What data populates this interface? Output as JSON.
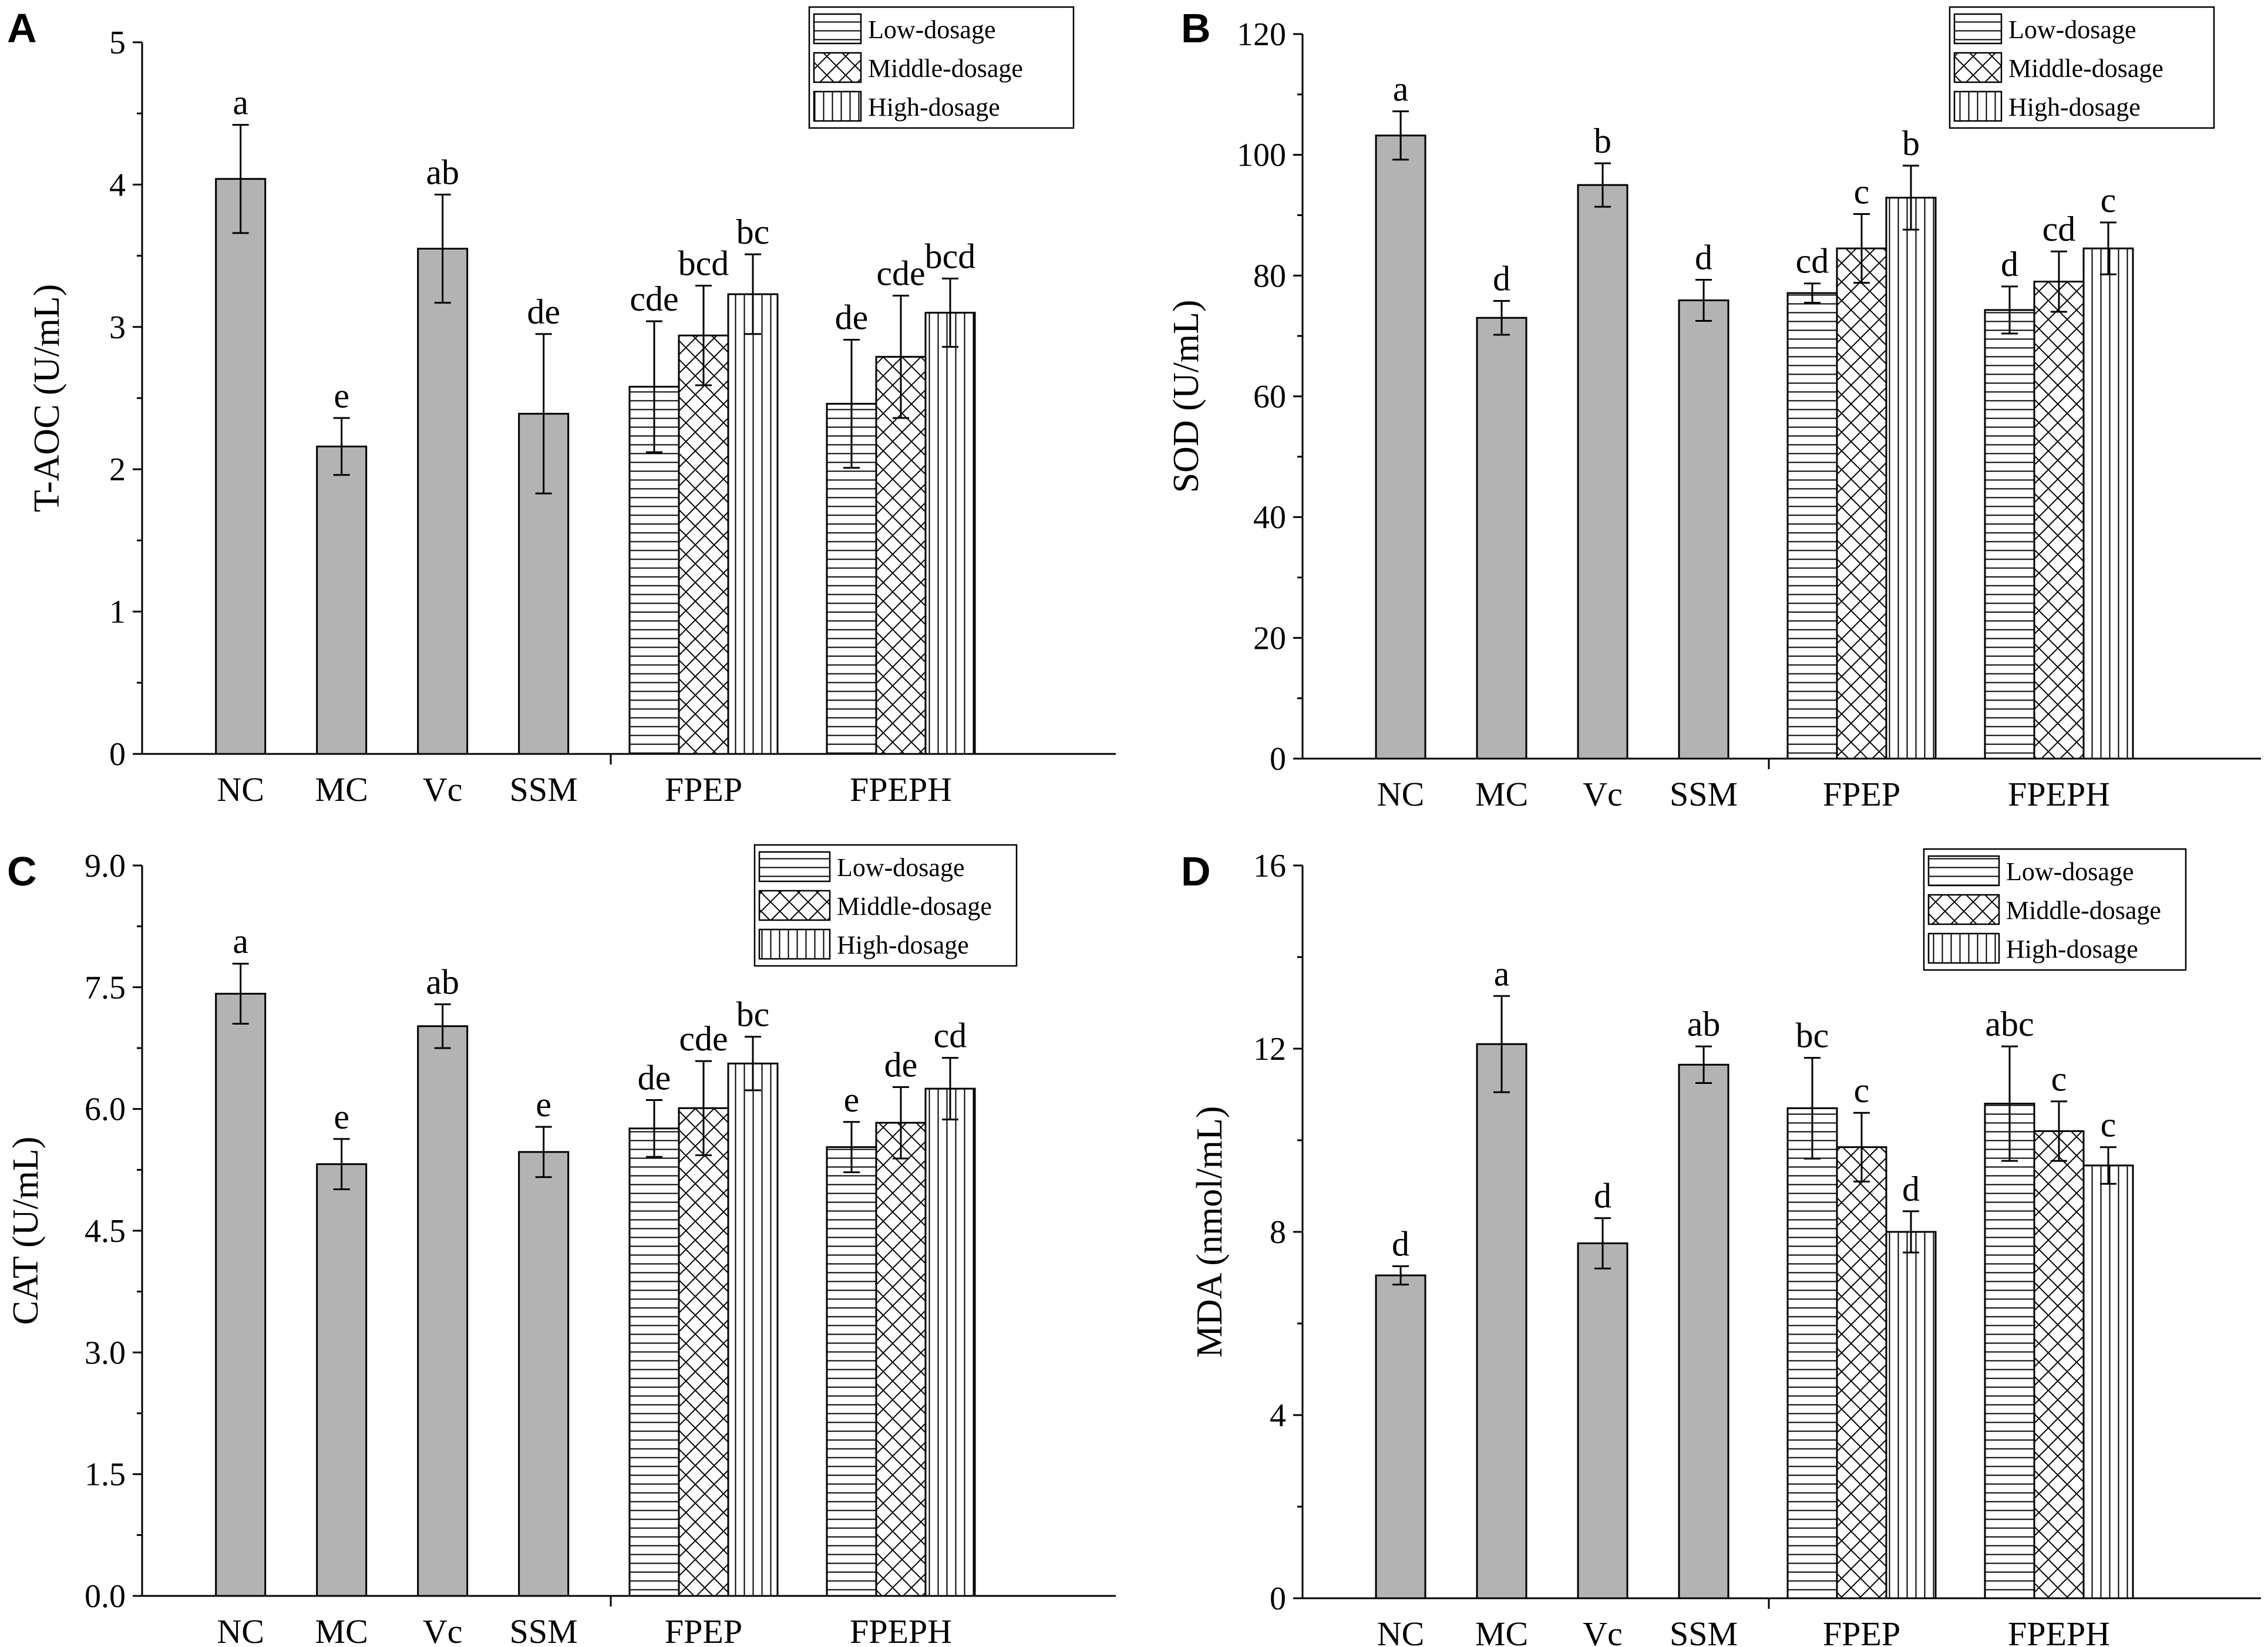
{
  "chart_data": [
    {
      "panel": "A",
      "type": "bar",
      "ylabel": "T-AOC (U/mL)",
      "ylim": [
        0,
        5
      ],
      "yticks": [
        "0",
        "1",
        "2",
        "3",
        "4",
        "5"
      ],
      "groups": [
        "NC",
        "MC",
        "Vc",
        "SSM",
        "FPEP",
        "FPEPH"
      ],
      "legend": [
        "Low-dosage",
        "Middle-dosage",
        "High-dosage"
      ],
      "legend_position": "top-right",
      "bars": [
        {
          "group": "NC",
          "dosage": "single",
          "value": 4.04,
          "error": 0.38,
          "label": "a"
        },
        {
          "group": "MC",
          "dosage": "single",
          "value": 2.16,
          "error": 0.2,
          "label": "e"
        },
        {
          "group": "Vc",
          "dosage": "single",
          "value": 3.55,
          "error": 0.38,
          "label": "ab"
        },
        {
          "group": "SSM",
          "dosage": "single",
          "value": 2.39,
          "error": 0.56,
          "label": "de"
        },
        {
          "group": "FPEP",
          "dosage": "Low-dosage",
          "value": 2.58,
          "error": 0.46,
          "label": "cde"
        },
        {
          "group": "FPEP",
          "dosage": "Middle-dosage",
          "value": 2.94,
          "error": 0.35,
          "label": "bcd"
        },
        {
          "group": "FPEP",
          "dosage": "High-dosage",
          "value": 3.23,
          "error": 0.28,
          "label": "bc"
        },
        {
          "group": "FPEPH",
          "dosage": "Low-dosage",
          "value": 2.46,
          "error": 0.45,
          "label": "de"
        },
        {
          "group": "FPEPH",
          "dosage": "Middle-dosage",
          "value": 2.79,
          "error": 0.43,
          "label": "cde"
        },
        {
          "group": "FPEPH",
          "dosage": "High-dosage",
          "value": 3.1,
          "error": 0.24,
          "label": "bcd"
        }
      ]
    },
    {
      "panel": "B",
      "type": "bar",
      "ylabel": "SOD (U/mL)",
      "ylim": [
        0,
        120
      ],
      "yticks": [
        "0",
        "20",
        "40",
        "60",
        "80",
        "100",
        "120"
      ],
      "groups": [
        "NC",
        "MC",
        "Vc",
        "SSM",
        "FPEP",
        "FPEPH"
      ],
      "legend": [
        "Low-dosage",
        "Middle-dosage",
        "High-dosage"
      ],
      "legend_position": "top-right",
      "bars": [
        {
          "group": "NC",
          "dosage": "single",
          "value": 103.2,
          "error": 4.0,
          "label": "a"
        },
        {
          "group": "MC",
          "dosage": "single",
          "value": 73.0,
          "error": 2.8,
          "label": "d"
        },
        {
          "group": "Vc",
          "dosage": "single",
          "value": 95.0,
          "error": 3.6,
          "label": "b"
        },
        {
          "group": "SSM",
          "dosage": "single",
          "value": 75.9,
          "error": 3.4,
          "label": "d"
        },
        {
          "group": "FPEP",
          "dosage": "Low-dosage",
          "value": 77.1,
          "error": 1.6,
          "label": "cd"
        },
        {
          "group": "FPEP",
          "dosage": "Middle-dosage",
          "value": 84.5,
          "error": 5.7,
          "label": "c"
        },
        {
          "group": "FPEP",
          "dosage": "High-dosage",
          "value": 92.9,
          "error": 5.3,
          "label": "b"
        },
        {
          "group": "FPEPH",
          "dosage": "Low-dosage",
          "value": 74.3,
          "error": 3.9,
          "label": "d"
        },
        {
          "group": "FPEPH",
          "dosage": "Middle-dosage",
          "value": 79.0,
          "error": 5.0,
          "label": "cd"
        },
        {
          "group": "FPEPH",
          "dosage": "High-dosage",
          "value": 84.5,
          "error": 4.3,
          "label": "c"
        }
      ]
    },
    {
      "panel": "C",
      "type": "bar",
      "ylabel": "CAT (U/mL)",
      "ylim": [
        0,
        9
      ],
      "yticks": [
        "0.0",
        "1.5",
        "3.0",
        "4.5",
        "6.0",
        "7.5",
        "9.0"
      ],
      "groups": [
        "NC",
        "MC",
        "Vc",
        "SSM",
        "FPEP",
        "FPEPH"
      ],
      "legend": [
        "Low-dosage",
        "Middle-dosage",
        "High-dosage"
      ],
      "legend_position": "top-right",
      "bars": [
        {
          "group": "NC",
          "dosage": "single",
          "value": 7.42,
          "error": 0.37,
          "label": "a"
        },
        {
          "group": "MC",
          "dosage": "single",
          "value": 5.32,
          "error": 0.31,
          "label": "e"
        },
        {
          "group": "Vc",
          "dosage": "single",
          "value": 7.02,
          "error": 0.27,
          "label": "ab"
        },
        {
          "group": "SSM",
          "dosage": "single",
          "value": 5.47,
          "error": 0.31,
          "label": "e"
        },
        {
          "group": "FPEP",
          "dosage": "Low-dosage",
          "value": 5.76,
          "error": 0.35,
          "label": "de"
        },
        {
          "group": "FPEP",
          "dosage": "Middle-dosage",
          "value": 6.01,
          "error": 0.58,
          "label": "cde"
        },
        {
          "group": "FPEP",
          "dosage": "High-dosage",
          "value": 6.56,
          "error": 0.33,
          "label": "bc"
        },
        {
          "group": "FPEPH",
          "dosage": "Low-dosage",
          "value": 5.53,
          "error": 0.31,
          "label": "e"
        },
        {
          "group": "FPEPH",
          "dosage": "Middle-dosage",
          "value": 5.83,
          "error": 0.44,
          "label": "de"
        },
        {
          "group": "FPEPH",
          "dosage": "High-dosage",
          "value": 6.25,
          "error": 0.38,
          "label": "cd"
        }
      ]
    },
    {
      "panel": "D",
      "type": "bar",
      "ylabel": "MDA (nmol/mL)",
      "ylim": [
        0,
        16
      ],
      "yticks": [
        "0",
        "4",
        "8",
        "12",
        "16"
      ],
      "groups": [
        "NC",
        "MC",
        "Vc",
        "SSM",
        "FPEP",
        "FPEPH"
      ],
      "legend": [
        "Low-dosage",
        "Middle-dosage",
        "High-dosage"
      ],
      "legend_position": "top-right",
      "bars": [
        {
          "group": "NC",
          "dosage": "single",
          "value": 7.05,
          "error": 0.2,
          "label": "d"
        },
        {
          "group": "MC",
          "dosage": "single",
          "value": 12.1,
          "error": 1.05,
          "label": "a"
        },
        {
          "group": "Vc",
          "dosage": "single",
          "value": 7.75,
          "error": 0.55,
          "label": "d"
        },
        {
          "group": "SSM",
          "dosage": "single",
          "value": 11.65,
          "error": 0.4,
          "label": "ab"
        },
        {
          "group": "FPEP",
          "dosage": "Low-dosage",
          "value": 10.7,
          "error": 1.1,
          "label": "bc"
        },
        {
          "group": "FPEP",
          "dosage": "Middle-dosage",
          "value": 9.85,
          "error": 0.75,
          "label": "c"
        },
        {
          "group": "FPEP",
          "dosage": "High-dosage",
          "value": 8.0,
          "error": 0.45,
          "label": "d"
        },
        {
          "group": "FPEPH",
          "dosage": "Low-dosage",
          "value": 10.8,
          "error": 1.25,
          "label": "abc"
        },
        {
          "group": "FPEPH",
          "dosage": "Middle-dosage",
          "value": 10.2,
          "error": 0.65,
          "label": "c"
        },
        {
          "group": "FPEPH",
          "dosage": "High-dosage",
          "value": 9.45,
          "error": 0.4,
          "label": "c"
        }
      ]
    }
  ]
}
